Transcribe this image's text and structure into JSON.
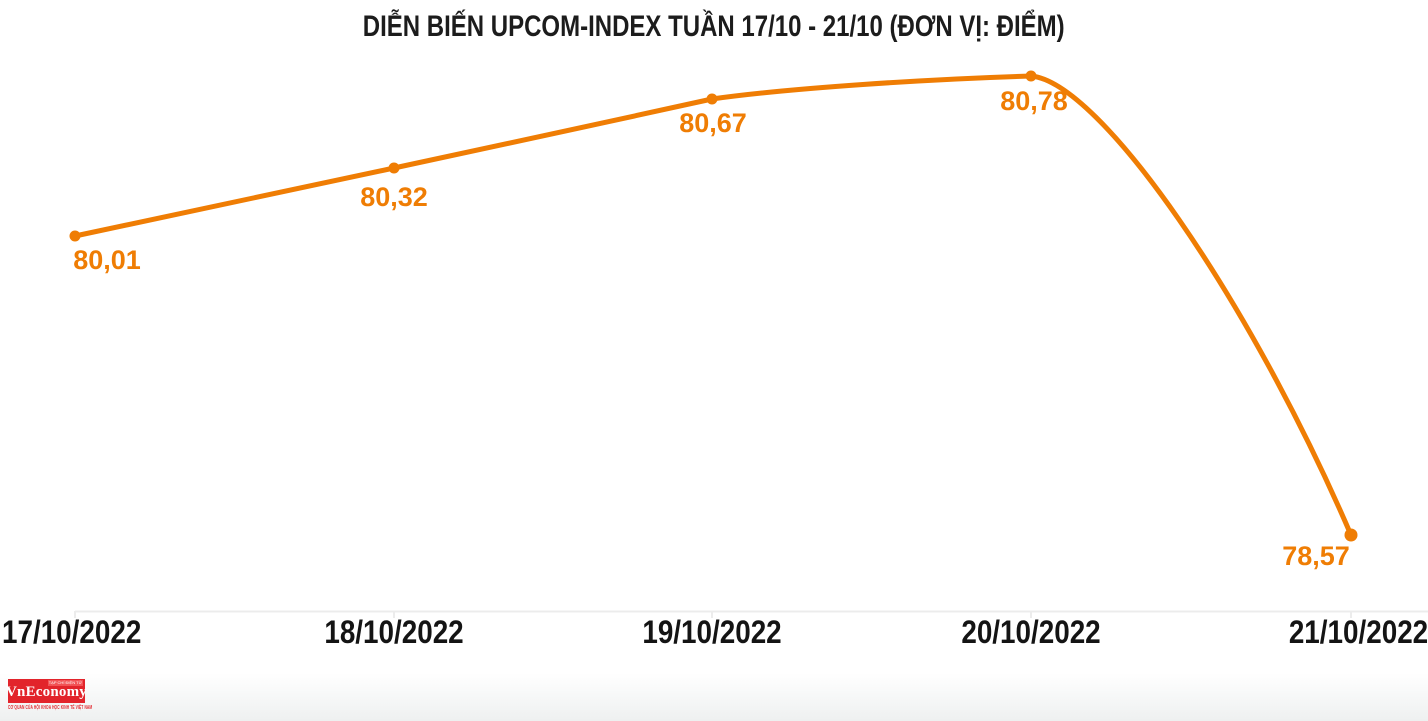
{
  "chart_data": {
    "type": "line",
    "title": "DIỄN BIẾN UPCOM-INDEX TUẦN 17/10 - 21/10 (ĐƠN VỊ: ĐIỂM)",
    "unit_label": "ĐIỂM",
    "categories": [
      "17/10/2022",
      "18/10/2022",
      "19/10/2022",
      "20/10/2022",
      "21/10/2022"
    ],
    "values": [
      80.01,
      80.32,
      80.67,
      80.78,
      78.57
    ],
    "value_labels": [
      "80,01",
      "80,32",
      "80,67",
      "80,78",
      "78,57"
    ],
    "series_name": "UPCOM-INDEX",
    "series_color": "#EF7D04",
    "marker": "circle",
    "legend": "none",
    "grid": "off",
    "xlabel": "",
    "ylabel": "",
    "ylim": [
      78.2,
      81.0
    ],
    "axis_line_color": "#ececec"
  },
  "colors": {
    "accent_orange": "#EF7D04",
    "title_text": "#1c1c1c",
    "axis_text": "#141414",
    "brand_red": "#E2242B"
  },
  "logo": {
    "wordmark": "VnEconomy",
    "tag": "TẠP CHÍ ĐIỆN TỬ",
    "tagline": "CƠ QUAN CỦA HỘI KHOA HỌC KINH TẾ VIỆT NAM"
  }
}
